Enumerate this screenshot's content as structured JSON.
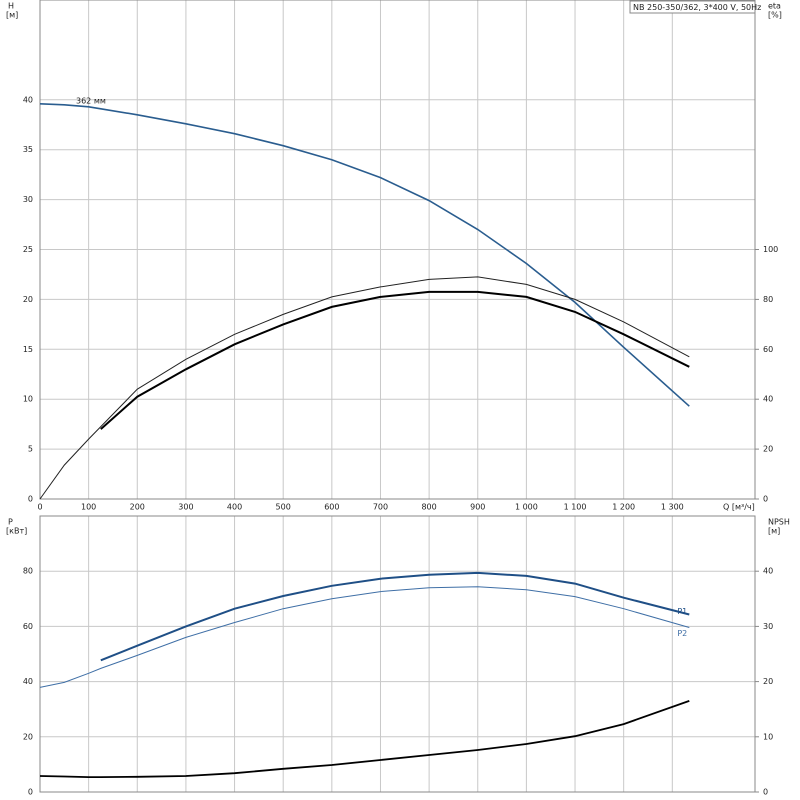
{
  "chart_data": [
    {
      "type": "line",
      "title": "NB 250-350/362, 3*400 V, 50Hz",
      "ylabel": "H",
      "yunit": "[м]",
      "y2label": "eta",
      "y2unit": "[%]",
      "xlabel": "Q [м³/ч]",
      "xlim": [
        0,
        1470
      ],
      "ylim": [
        0,
        50
      ],
      "y2lim": [
        0,
        200
      ],
      "xticks": [
        0,
        100,
        200,
        300,
        400,
        500,
        600,
        700,
        800,
        900,
        {
          "value": 1000,
          "label": "1 000"
        },
        {
          "value": 1100,
          "label": "1 100"
        },
        {
          "value": 1200,
          "label": "1 200"
        },
        {
          "value": 1300,
          "label": "1 300"
        }
      ],
      "yticks": [
        0,
        5,
        10,
        15,
        20,
        25,
        30,
        35,
        40
      ],
      "y2ticks": [
        0,
        20,
        40,
        60,
        80,
        100
      ],
      "grid": true,
      "x": [
        0,
        50,
        100,
        125,
        200,
        300,
        400,
        500,
        600,
        700,
        800,
        900,
        1000,
        1100,
        1200,
        1335
      ],
      "series": [
        {
          "name": "362 мм",
          "color": "#2a5d8f",
          "width": 1.6,
          "values": [
            39.6,
            39.5,
            39.3,
            39.1,
            38.5,
            37.6,
            36.6,
            35.4,
            34.0,
            32.2,
            29.9,
            27.0,
            23.6,
            19.7,
            15.2,
            9.3
          ]
        },
        {
          "color": "#222222",
          "width": 1,
          "axis": "y2",
          "values": [
            0,
            13.6,
            24,
            29,
            44,
            56,
            66,
            74,
            81,
            85,
            88,
            89,
            86,
            80,
            71,
            57
          ]
        },
        {
          "color": "#000000",
          "width": 2,
          "axis": "y2",
          "values": [
            null,
            null,
            null,
            28,
            41,
            52,
            62,
            70,
            77,
            81,
            83,
            83,
            81,
            75,
            66,
            53
          ]
        }
      ]
    },
    {
      "type": "line",
      "ylabel": "P",
      "yunit": "[кВт]",
      "y2label": "NPSH",
      "y2unit": "[м]",
      "xlim": [
        0,
        1470
      ],
      "ylim": [
        0,
        100
      ],
      "y2lim": [
        0,
        50
      ],
      "yticks": [
        0,
        20,
        40,
        60,
        80
      ],
      "y2ticks": [
        0,
        10,
        20,
        30,
        40
      ],
      "grid": true,
      "x": [
        0,
        50,
        100,
        125,
        200,
        300,
        400,
        500,
        600,
        700,
        800,
        900,
        1000,
        1100,
        1200,
        1335
      ],
      "series": [
        {
          "name": "P1",
          "color": "#1f4f86",
          "width": 2,
          "values": [
            null,
            null,
            null,
            47.7,
            53,
            60,
            66.4,
            71,
            74.7,
            77.3,
            78.7,
            79.4,
            78.3,
            75.5,
            70.4,
            64.3
          ]
        },
        {
          "name": "P2",
          "color": "#3f6fa6",
          "width": 1,
          "values": [
            37.9,
            39.7,
            43,
            44.8,
            49.5,
            56,
            61.4,
            66.4,
            70,
            72.6,
            74,
            74.4,
            73.3,
            70.8,
            66.4,
            59.6
          ]
        },
        {
          "color": "#000000",
          "width": 1.8,
          "axis": "y2",
          "values": [
            2.9,
            2.8,
            2.7,
            2.7,
            2.75,
            2.9,
            3.4,
            4.2,
            4.9,
            5.8,
            6.7,
            7.6,
            8.7,
            10.1,
            12.3,
            16.5
          ]
        }
      ]
    }
  ]
}
